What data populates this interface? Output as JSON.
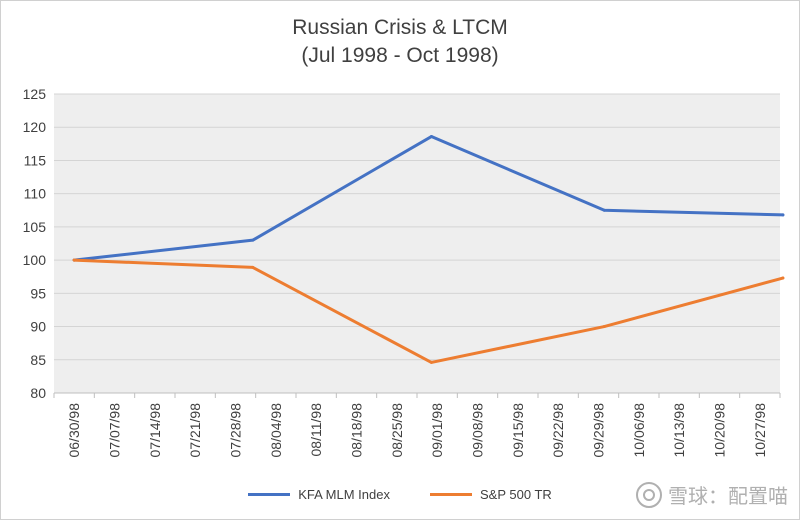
{
  "chart_data": {
    "type": "line",
    "title": "Russian Crisis & LTCM",
    "subtitle": "(Jul 1998 - Oct 1998)",
    "x": [
      "06/30/98",
      "07/07/98",
      "07/14/98",
      "07/21/98",
      "07/28/98",
      "08/04/98",
      "08/11/98",
      "08/18/98",
      "08/25/98",
      "09/01/98",
      "09/08/98",
      "09/15/98",
      "09/22/98",
      "09/29/98",
      "10/06/98",
      "10/13/98",
      "10/20/98",
      "10/27/98"
    ],
    "ylim": [
      80,
      125
    ],
    "yticks": [
      80,
      85,
      90,
      95,
      100,
      105,
      110,
      115,
      120,
      125
    ],
    "grid": true,
    "legend": "bottom",
    "series": [
      {
        "name": "KFA MLM Index",
        "color": "#4472C4",
        "points": [
          {
            "x": "06/30/98",
            "y": 100
          },
          {
            "x": "07/31/98",
            "y": 103.0
          },
          {
            "x": "08/31/98",
            "y": 118.6
          },
          {
            "x": "09/30/98",
            "y": 107.5
          },
          {
            "x": "10/31/98",
            "y": 106.8
          }
        ]
      },
      {
        "name": "S&P 500 TR",
        "color": "#ED7D31",
        "points": [
          {
            "x": "06/30/98",
            "y": 100
          },
          {
            "x": "07/31/98",
            "y": 98.9
          },
          {
            "x": "08/31/98",
            "y": 84.6
          },
          {
            "x": "09/30/98",
            "y": 90.0
          },
          {
            "x": "10/31/98",
            "y": 97.3
          }
        ]
      }
    ]
  },
  "watermark": {
    "text": "雪球：配置喵"
  }
}
